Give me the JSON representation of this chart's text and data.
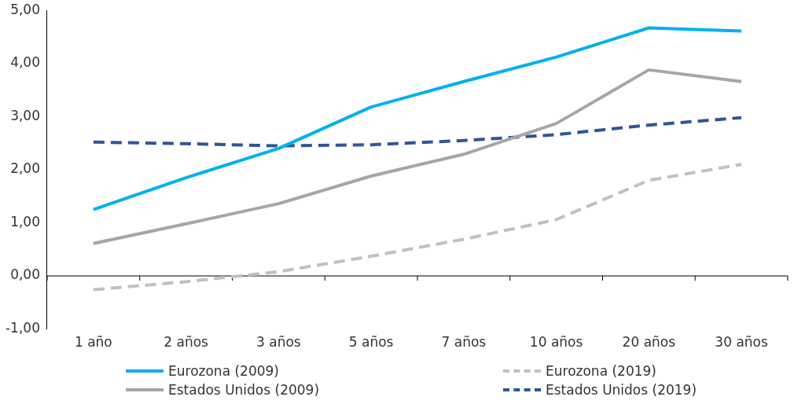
{
  "chart_data": {
    "type": "line",
    "categories": [
      "1 año",
      "2 años",
      "3 años",
      "5 años",
      "7 años",
      "10 años",
      "20 años",
      "30 años"
    ],
    "series": [
      {
        "name": "Eurozona (2009)",
        "color": "#00b0f0",
        "line_style": "solid",
        "values": [
          1.25,
          1.85,
          2.4,
          3.18,
          3.66,
          4.12,
          4.67,
          4.61
        ]
      },
      {
        "name": "Eurozona (2019)",
        "color": "#c0c0c0",
        "line_style": "dashed",
        "values": [
          -0.26,
          -0.11,
          0.08,
          0.37,
          0.69,
          1.06,
          1.8,
          2.1
        ]
      },
      {
        "name": "Estados Unidos (2009)",
        "color": "#a6a6a6",
        "line_style": "solid",
        "values": [
          0.61,
          0.98,
          1.36,
          1.88,
          2.29,
          2.87,
          3.88,
          3.66
        ]
      },
      {
        "name": "Estados Unidos (2019)",
        "color": "#2f5597",
        "line_style": "dashed",
        "values": [
          2.52,
          2.49,
          2.45,
          2.47,
          2.55,
          2.66,
          2.84,
          2.98
        ]
      }
    ],
    "ylim": [
      -1,
      5
    ],
    "yticks": [
      {
        "value": -1,
        "label": "-1,00"
      },
      {
        "value": 0,
        "label": "0,00"
      },
      {
        "value": 1,
        "label": "1,00"
      },
      {
        "value": 2,
        "label": "2,00"
      },
      {
        "value": 3,
        "label": "3,00"
      },
      {
        "value": 4,
        "label": "4,00"
      },
      {
        "value": 5,
        "label": "5,00"
      }
    ],
    "ref_lines": [
      {
        "axis": "y",
        "value": 0,
        "color": "#000000"
      }
    ],
    "grid": false,
    "legend": "bottom",
    "marker": "none"
  }
}
